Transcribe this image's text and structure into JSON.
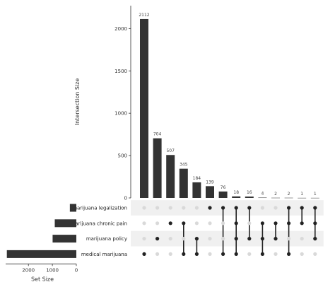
{
  "chart_data": {
    "type": "bar",
    "title": "",
    "ylabel": "Intersection Size",
    "xlabel_sets": "Set Size",
    "colors": {
      "bar": "#333333",
      "dot_on": "#222222",
      "dot_off": "#d9d9d9",
      "stripe": "#f0f0f0"
    },
    "grid": false,
    "intersection_axis": {
      "ylim": [
        0,
        2270
      ],
      "ticks": [
        0,
        500,
        1000,
        1500,
        2000
      ]
    },
    "setsize_axis": {
      "xlim": [
        0,
        2950
      ],
      "ticks": [
        0,
        1000,
        2000
      ]
    },
    "sets": [
      {
        "name": "marijuana legalization",
        "size": 270
      },
      {
        "name": "marijuana chronic pain",
        "size": 900
      },
      {
        "name": "marijuana policy",
        "size": 990
      },
      {
        "name": "medical marijuana",
        "size": 2900
      }
    ],
    "intersections": [
      {
        "value": 2112,
        "members": [
          "medical marijuana"
        ]
      },
      {
        "value": 704,
        "members": [
          "marijuana policy"
        ]
      },
      {
        "value": 507,
        "members": [
          "marijuana chronic pain"
        ]
      },
      {
        "value": 345,
        "members": [
          "marijuana chronic pain",
          "medical marijuana"
        ]
      },
      {
        "value": 184,
        "members": [
          "marijuana policy",
          "medical marijuana"
        ]
      },
      {
        "value": 139,
        "members": [
          "marijuana legalization"
        ]
      },
      {
        "value": 76,
        "members": [
          "marijuana legalization",
          "medical marijuana"
        ]
      },
      {
        "value": 18,
        "members": [
          "marijuana legalization",
          "marijuana chronic pain",
          "marijuana policy",
          "medical marijuana"
        ]
      },
      {
        "value": 16,
        "members": [
          "marijuana legalization",
          "marijuana policy"
        ]
      },
      {
        "value": 4,
        "members": [
          "marijuana chronic pain",
          "marijuana policy",
          "medical marijuana"
        ]
      },
      {
        "value": 2,
        "members": [
          "marijuana chronic pain",
          "marijuana policy"
        ]
      },
      {
        "value": 2,
        "members": [
          "marijuana legalization",
          "marijuana chronic pain",
          "medical marijuana"
        ]
      },
      {
        "value": 1,
        "members": [
          "marijuana legalization",
          "marijuana chronic pain"
        ]
      },
      {
        "value": 1,
        "members": [
          "marijuana legalization",
          "marijuana chronic pain",
          "marijuana policy"
        ]
      }
    ]
  }
}
